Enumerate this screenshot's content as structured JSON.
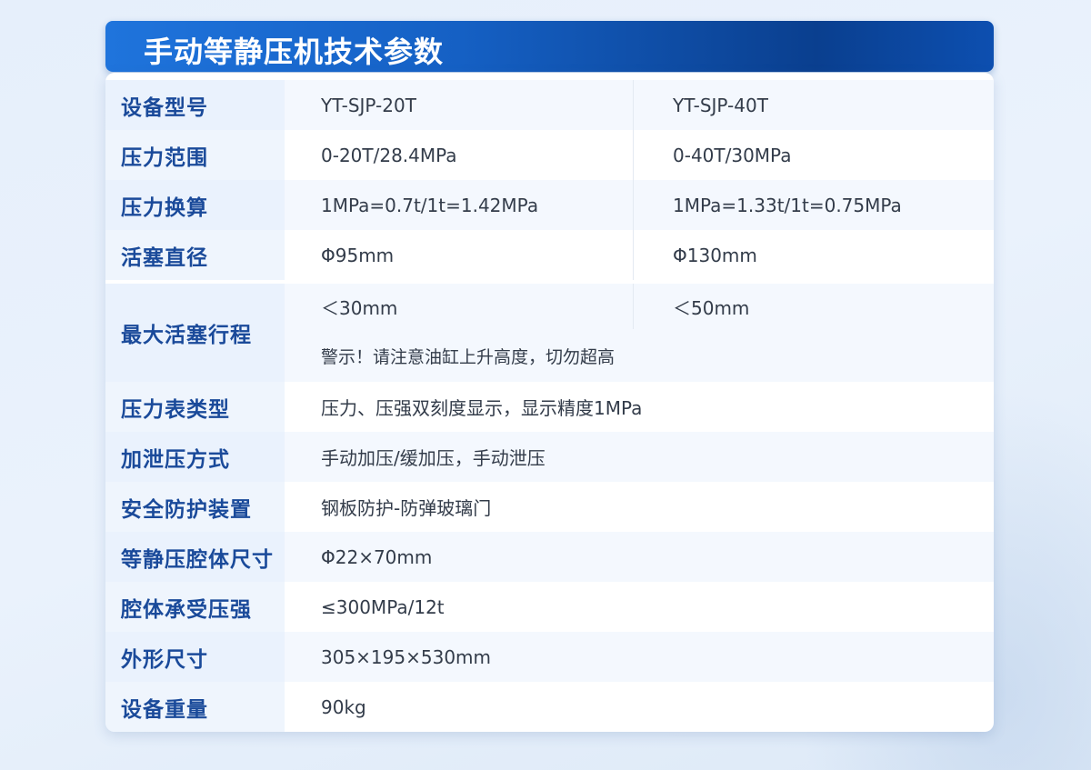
{
  "title": "手动等静压机技术参数",
  "rows": [
    {
      "label": "设备型号",
      "v1": "YT-SJP-20T",
      "v2": "YT-SJP-40T"
    },
    {
      "label": "压力范围",
      "v1": "0-20T/28.4MPa",
      "v2": "0-40T/30MPa"
    },
    {
      "label": "压力换算",
      "v1": "1MPa=0.7t/1t=1.42MPa",
      "v2": "1MPa=1.33t/1t=0.75MPa"
    },
    {
      "label": "活塞直径",
      "v1": "Φ95mm",
      "v2": "Φ130mm"
    },
    {
      "label": "最大活塞行程",
      "v1": "＜30mm",
      "v2": "＜50mm",
      "note": "警示！请注意油缸上升高度，切勿超高"
    },
    {
      "label": "压力表类型",
      "v1": "压力、压强双刻度显示，显示精度1MPa"
    },
    {
      "label": "加泄压方式",
      "v1": "手动加压/缓加压，手动泄压"
    },
    {
      "label": "安全防护装置",
      "v1": "钢板防护-防弹玻璃门"
    },
    {
      "label": "等静压腔体尺寸",
      "v1": "Φ22×70mm"
    },
    {
      "label": "腔体承受压强",
      "v1": "≤300MPa/12t"
    },
    {
      "label": "外形尺寸",
      "v1": "305×195×530mm"
    },
    {
      "label": "设备重量",
      "v1": "90kg"
    }
  ]
}
